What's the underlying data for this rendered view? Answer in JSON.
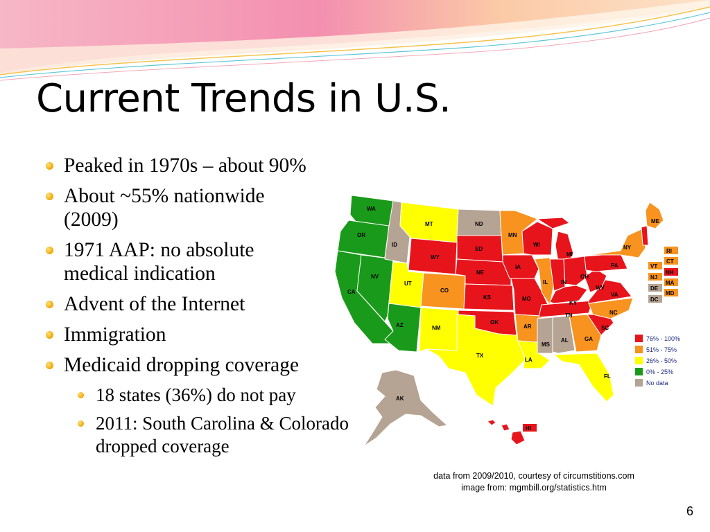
{
  "slide": {
    "title": "Current Trends in U.S.",
    "page_number": "6"
  },
  "bullets": [
    {
      "text": "Peaked in 1970s – about 90%"
    },
    {
      "text": "About ~55% nationwide (2009)"
    },
    {
      "text": "1971 AAP: no absolute medical indication"
    },
    {
      "text": "Advent of the Internet"
    },
    {
      "text": "Immigration"
    },
    {
      "text": "Medicaid dropping coverage"
    }
  ],
  "sub_bullets": [
    {
      "text": "18 states (36%) do not pay"
    },
    {
      "text": "2011: South Carolina & Colorado dropped coverage"
    }
  ],
  "map": {
    "legend": [
      {
        "label": "76% - 100%",
        "color": "#e8141c"
      },
      {
        "label": "51% - 75%",
        "color": "#f7931e"
      },
      {
        "label": "26% - 50%",
        "color": "#ffff00"
      },
      {
        "label": "0% - 25%",
        "color": "#1a9a1a"
      },
      {
        "label": "No data",
        "color": "#b5a393"
      }
    ],
    "states": {
      "WA": "WA",
      "OR": "OR",
      "CA": "CA",
      "NV": "NV",
      "ID": "ID",
      "MT": "MT",
      "WY": "WY",
      "UT": "UT",
      "AZ": "AZ",
      "CO": "CO",
      "NM": "NM",
      "ND": "ND",
      "SD": "SD",
      "NE": "NE",
      "KS": "KS",
      "OK": "OK",
      "TX": "TX",
      "MN": "MN",
      "IA": "IA",
      "MO": "MO",
      "AR": "AR",
      "LA": "LA",
      "WI": "WI",
      "IL": "IL",
      "MS": "MS",
      "MI": "MI",
      "IN": "IN",
      "KY": "KY",
      "TN": "TN",
      "AL": "AL",
      "OH": "OH",
      "WV": "WV",
      "GA": "GA",
      "FL": "FL",
      "SC": "SC",
      "NC": "NC",
      "VA": "VA",
      "PA": "PA",
      "NY": "NY",
      "ME": "ME",
      "AK": "AK",
      "HI": "HI",
      "RI": "RI",
      "CT": "CT",
      "VT": "VT",
      "NH": "NH",
      "NJ": "NJ",
      "MA": "MA",
      "DE": "DE",
      "MD": "MD",
      "DC": "DC"
    }
  },
  "credits": {
    "line1": "data from 2009/2010, courtesy of circumstitions.com",
    "line2": "image from: mgmbill.org/statistics.htm"
  }
}
